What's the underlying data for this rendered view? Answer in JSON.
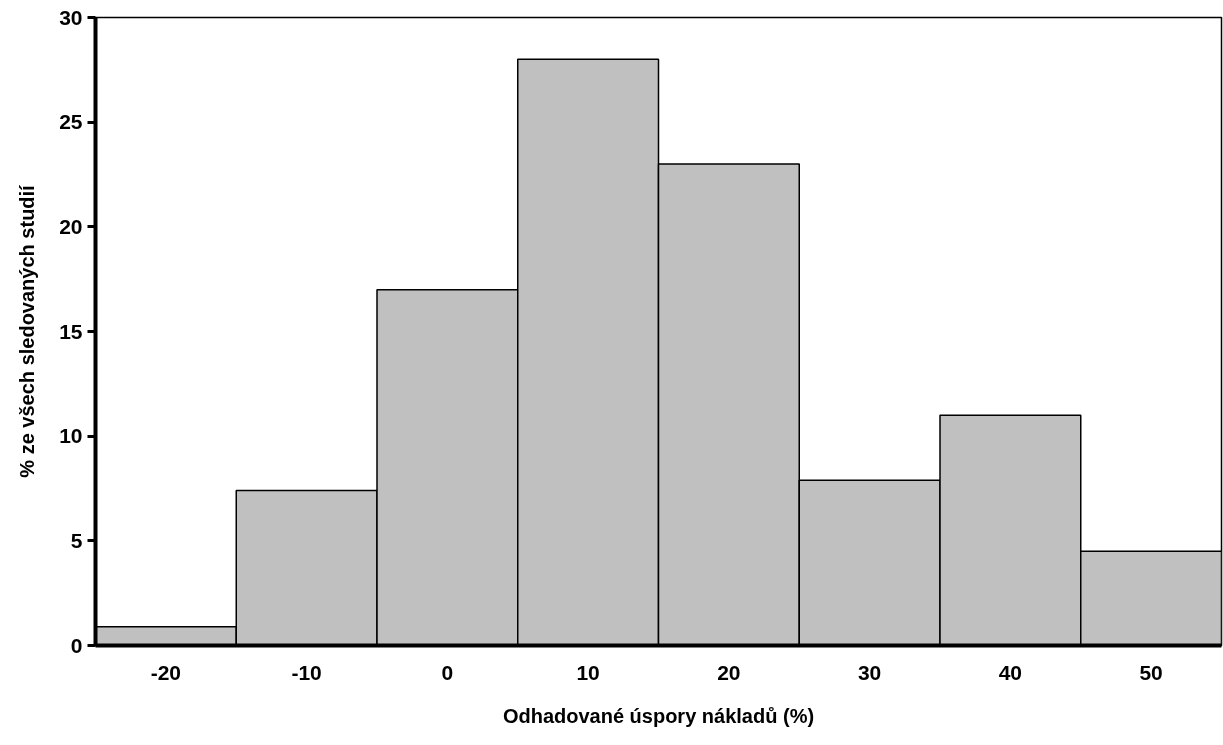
{
  "chart_data": {
    "type": "bar",
    "xlabel": "Odhadované úspory nákladů (%)",
    "ylabel": "% ze všech sledovaných studií",
    "categories": [
      "-20",
      "-10",
      "0",
      "10",
      "20",
      "30",
      "40",
      "50"
    ],
    "values": [
      0.9,
      7.4,
      17,
      28,
      23,
      7.9,
      11,
      4.5
    ],
    "color": "#c0c0c0",
    "ylim": [
      0,
      30
    ],
    "yticks": [
      0,
      5,
      10,
      15,
      20,
      25,
      30
    ],
    "grid": false
  }
}
